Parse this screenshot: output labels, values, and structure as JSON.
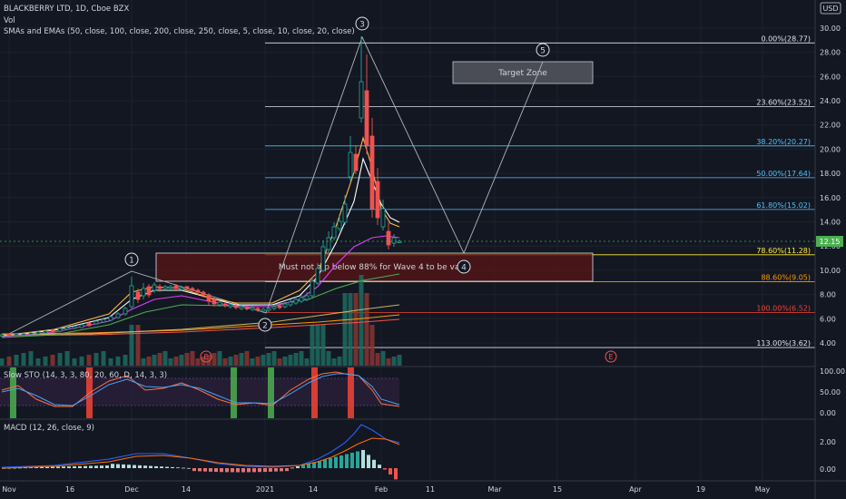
{
  "header": {
    "title": "BLACKBERRY LTD, 1D, Cboe BZX",
    "vol": "Vol",
    "ma_legend": "SMAs and EMAs (50, close, 100, close, 200, close, 250, close, 5, close, 10, close, 20, close)",
    "currency": "USD"
  },
  "price_axis": [
    "30.00",
    "28.00",
    "26.00",
    "24.00",
    "22.00",
    "20.00",
    "18.00",
    "16.00",
    "14.00",
    "12.00",
    "10.00",
    "8.00",
    "6.00",
    "4.00"
  ],
  "price_last": "12.15",
  "fib_levels": [
    {
      "label": "0.00%(28.77)",
      "value": 28.77,
      "color": "#e0e3eb"
    },
    {
      "label": "23.60%(23.52)",
      "value": 23.52,
      "color": "#e0e3eb"
    },
    {
      "label": "38.20%(20.27)",
      "value": 20.27,
      "color": "#4fc3f7"
    },
    {
      "label": "50.00%(17.64)",
      "value": 17.64,
      "color": "#4fc3f7"
    },
    {
      "label": "61.80%(15.02)",
      "value": 15.02,
      "color": "#4fc3f7"
    },
    {
      "label": "78.60%(11.28)",
      "value": 11.28,
      "color": "#ffeb3b"
    },
    {
      "label": "88.60%(9.05)",
      "value": 9.05,
      "color": "#ff9800"
    },
    {
      "label": "100.00%(6.52)",
      "value": 6.52,
      "color": "#f44336"
    },
    {
      "label": "113.00%(3.62)",
      "value": 3.62,
      "color": "#e0e3eb"
    }
  ],
  "annotations": {
    "target_zone": "Target Zone",
    "warning": "Must not dip below 88% for Wave 4 to be valid",
    "waves": [
      "1",
      "2",
      "3",
      "4",
      "5"
    ],
    "earnings_marker": "E"
  },
  "stoch": {
    "legend": "Slow STO (14, 3, 3, 80, 20, 60, D, 14, 3, 3)",
    "axis": [
      "100.00",
      "50.00",
      "0.00"
    ]
  },
  "macd": {
    "legend": "MACD (12, 26, close, 9)",
    "axis": [
      "2.00",
      "0.00"
    ]
  },
  "time_axis": [
    "Nov",
    "16",
    "Dec",
    "14",
    "2021",
    "14",
    "Feb",
    "11",
    "Mar",
    "15",
    "Apr",
    "19",
    "May"
  ],
  "colors": {
    "background": "#131722",
    "up": "#26a69a",
    "down": "#ef5350",
    "ema_pink": "#e040fb",
    "ema_white": "#ffffff",
    "sma_green": "#4caf50",
    "last_price": "#4caf50"
  }
}
